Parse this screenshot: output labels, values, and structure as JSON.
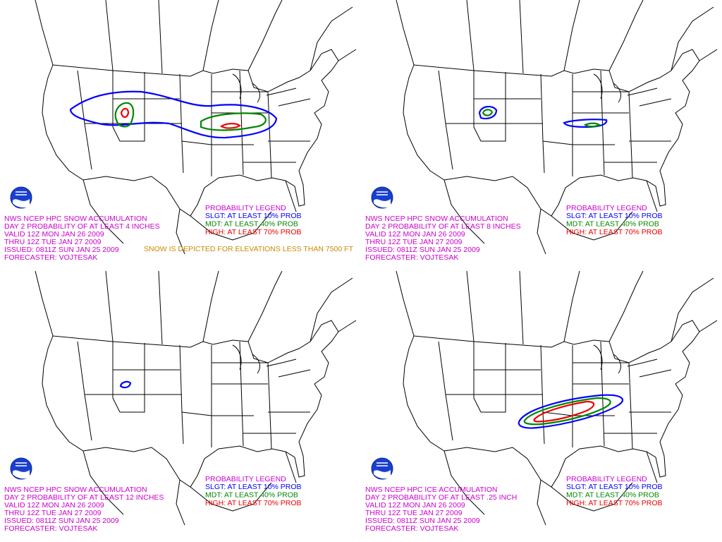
{
  "panels": [
    {
      "header": [
        "NWS NCEP HPC SNOW ACCUMULATION",
        "DAY 2 PROBABILITY OF AT LEAST 4 INCHES",
        "VALID 12Z MON JAN 26 2009",
        "THRU 12Z TUE JAN 27 2009",
        "ISSUED: 0811Z SUN JAN 25 2009",
        "FORECASTER: VOJTESAK"
      ],
      "legend": {
        "title": "PROBABILITY LEGEND",
        "items": [
          "SLGT: AT LEAST 10% PROB",
          "MDT: AT LEAST 40% PROB",
          "HIGH: AT LEAST 70% PROB"
        ]
      },
      "note": "SNOW IS DEPICTED FOR ELEVATIONS LESS THAN 7500 FT"
    },
    {
      "header": [
        "NWS NCEP HPC SNOW ACCUMULATION",
        "DAY 2 PROBABILITY OF AT LEAST 8 INCHES",
        "VALID 12Z MON JAN 26 2009",
        "THRU 12Z TUE JAN 27 2009",
        "ISSUED: 0811Z SUN JAN 25 2009",
        "FORECASTER: VOJTESAK"
      ],
      "legend": {
        "title": "PROBABILITY LEGEND",
        "items": [
          "SLGT: AT LEAST 10% PROB",
          "MDT: AT LEAST 40% PROB",
          "HIGH: AT LEAST 70% PROB"
        ]
      }
    },
    {
      "header": [
        "NWS NCEP HPC SNOW ACCUMULATION",
        "DAY 2 PROBABILITY OF AT LEAST 12 INCHES",
        "VALID 12Z MON JAN 26 2009",
        "THRU 12Z TUE JAN 27 2009",
        "ISSUED: 0811Z SUN JAN 25 2009",
        "FORECASTER: VOJTESAK"
      ],
      "legend": {
        "title": "PROBABILITY LEGEND",
        "items": [
          "SLGT: AT LEAST 10% PROB",
          "MDT: AT LEAST 40% PROB",
          "HIGH: AT LEAST 70% PROB"
        ]
      }
    },
    {
      "header": [
        "NWS NCEP HPC ICE ACCUMULATION",
        "DAY 2 PROBABILITY OF AT LEAST .25 INCH",
        "VALID 12Z MON JAN 26 2009",
        "THRU 12Z TUE JAN 27 2009",
        "ISSUED: 0811Z SUN JAN 25 2009",
        "FORECASTER: VOJTESAK"
      ],
      "legend": {
        "title": "PROBABILITY LEGEND",
        "items": [
          "SLGT: AT LEAST 10% PROB",
          "MDT: AT LEAST 40% PROB",
          "HIGH: AT LEAST 70% PROB"
        ]
      }
    }
  ]
}
